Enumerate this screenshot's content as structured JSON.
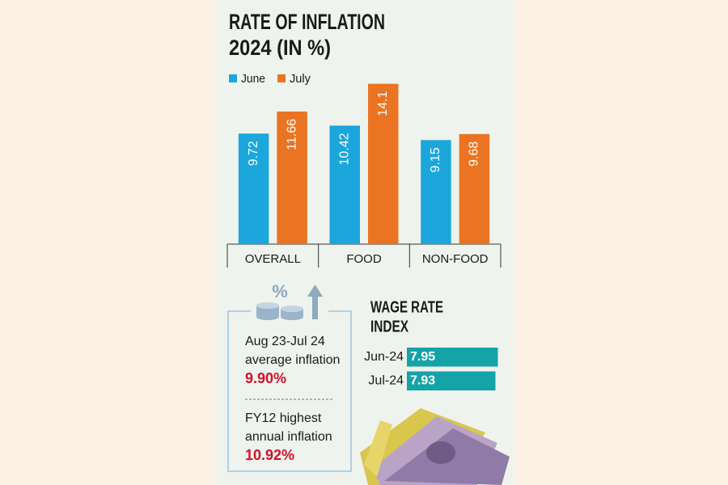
{
  "chart_data": [
    {
      "type": "bar",
      "title": [
        "RATE OF INFLATION",
        "2024 (IN %)"
      ],
      "categories": [
        "OVERALL",
        "FOOD",
        "NON-FOOD"
      ],
      "series": [
        {
          "name": "June",
          "color": "#1ba6dc",
          "values": [
            9.72,
            10.42,
            9.15
          ]
        },
        {
          "name": "July",
          "color": "#ea7421",
          "values": [
            11.66,
            14.1,
            9.68
          ]
        }
      ],
      "ylim": [
        0,
        15
      ]
    },
    {
      "type": "hbar",
      "title": [
        "WAGE RATE",
        "INDEX"
      ],
      "categories": [
        "Jun-24",
        "Jul-24"
      ],
      "values": [
        7.95,
        7.93
      ],
      "color": "#14a3a6",
      "xlim": [
        7.2,
        8.0
      ]
    }
  ],
  "info_box": {
    "items": [
      {
        "period": "Aug 23-Jul 24",
        "label": "average inflation",
        "value": "9.90%"
      },
      {
        "period": "FY12 highest",
        "label": "annual inflation",
        "value": "10.92%"
      }
    ]
  }
}
